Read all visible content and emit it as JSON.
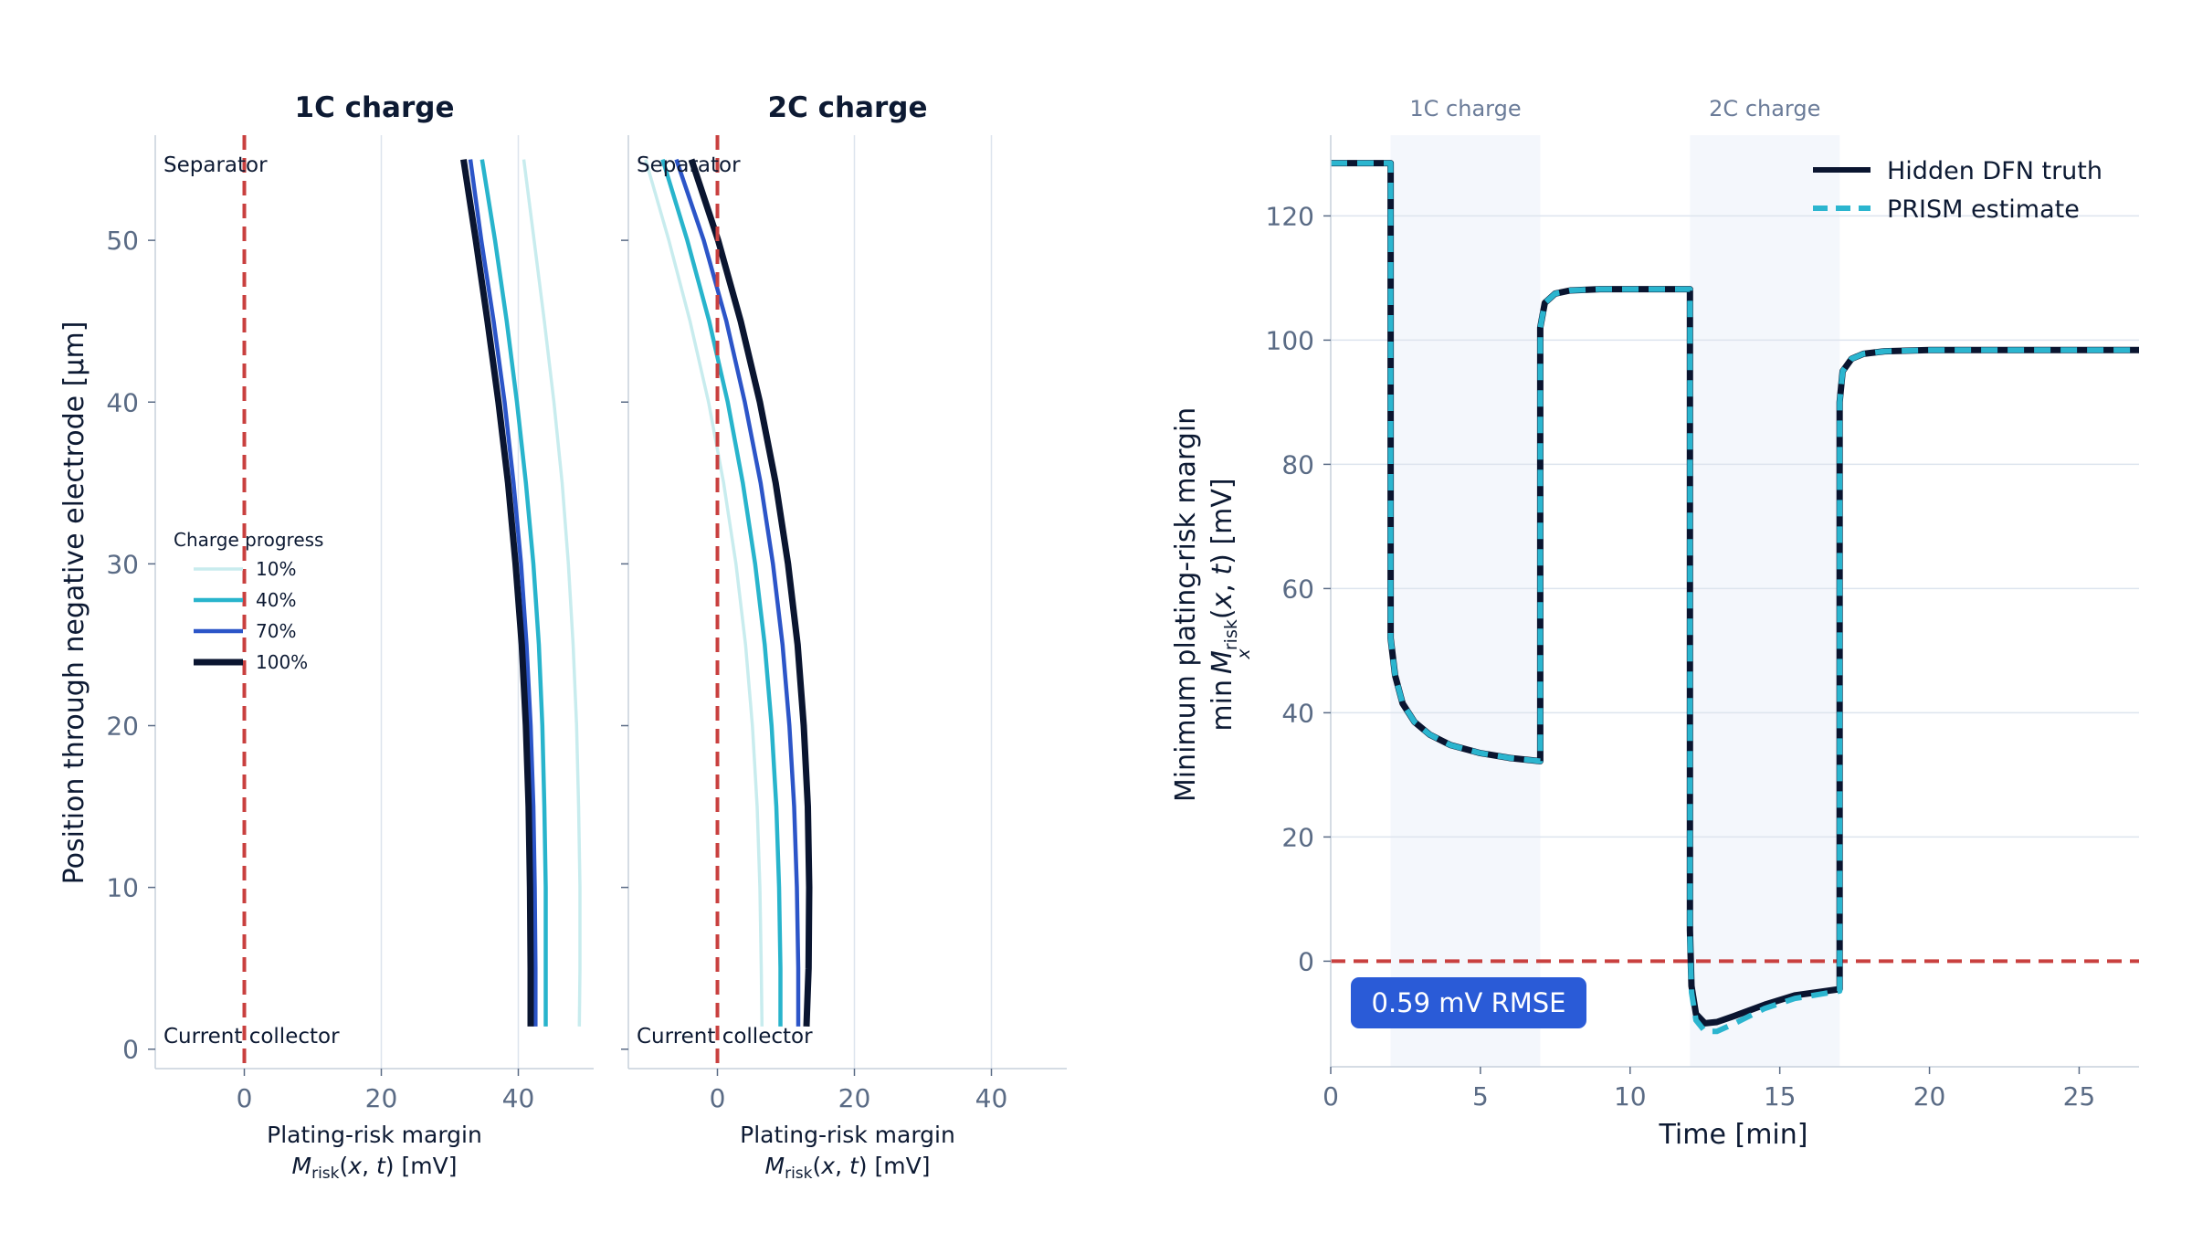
{
  "chart_data": [
    {
      "type": "line",
      "title": "1C charge",
      "xlabel": "Plating-risk margin",
      "xlabel_math": "M_risk(x, t) [mV]",
      "ylabel": "Position through negative electrode [μm]",
      "xlim": [
        -13,
        51
      ],
      "ylim": [
        -1.2,
        56.5
      ],
      "xticks": [
        0,
        20,
        40
      ],
      "yticks": [
        0,
        10,
        20,
        30,
        40,
        50
      ],
      "grid": "vertical",
      "threshold": 0,
      "annotations": {
        "top": "Separator",
        "bottom": "Current collector"
      },
      "legend": {
        "title": "Charge progress",
        "position": "center-left"
      },
      "y": [
        1.4,
        5,
        10,
        15,
        20,
        25,
        30,
        35,
        40,
        45,
        50,
        55
      ],
      "series": [
        {
          "name": "10%",
          "color": "#c8ecee",
          "x": [
            48.9,
            49.0,
            49.0,
            48.8,
            48.5,
            48.0,
            47.3,
            46.4,
            45.2,
            43.8,
            42.3,
            40.8
          ]
        },
        {
          "name": "40%",
          "color": "#28b4cc",
          "x": [
            44.0,
            44.0,
            44.0,
            43.8,
            43.5,
            43.0,
            42.2,
            41.1,
            39.8,
            38.3,
            36.6,
            34.7
          ]
        },
        {
          "name": "70%",
          "color": "#2c55c8",
          "x": [
            42.5,
            42.5,
            42.4,
            42.2,
            41.8,
            41.2,
            40.4,
            39.3,
            38.0,
            36.4,
            34.6,
            33.0
          ]
        },
        {
          "name": "100%",
          "color": "#0a1530",
          "x": [
            41.8,
            41.8,
            41.7,
            41.5,
            41.1,
            40.5,
            39.6,
            38.5,
            37.1,
            35.5,
            33.8,
            32.0
          ]
        }
      ]
    },
    {
      "type": "line",
      "title": "2C charge",
      "xlabel": "Plating-risk margin",
      "xlabel_math": "M_risk(x, t) [mV]",
      "xlim": [
        -13,
        51
      ],
      "ylim": [
        -1.2,
        56.5
      ],
      "xticks": [
        0,
        20,
        40
      ],
      "grid": "vertical",
      "threshold": 0,
      "annotations": {
        "top": "Separator",
        "bottom": "Current collector"
      },
      "y": [
        1.4,
        5,
        10,
        15,
        20,
        25,
        30,
        35,
        40,
        45,
        50,
        55
      ],
      "series": [
        {
          "name": "10%",
          "color": "#c8ecee",
          "x": [
            6.5,
            6.4,
            6.2,
            5.8,
            5.1,
            4.1,
            2.7,
            0.9,
            -1.3,
            -4.0,
            -7.1,
            -10.5
          ]
        },
        {
          "name": "40%",
          "color": "#28b4cc",
          "x": [
            9.2,
            9.2,
            9.0,
            8.6,
            7.9,
            6.9,
            5.5,
            3.7,
            1.5,
            -1.2,
            -4.4,
            -8.0
          ]
        },
        {
          "name": "70%",
          "color": "#2c55c8",
          "x": [
            11.8,
            11.8,
            11.6,
            11.2,
            10.5,
            9.5,
            8.1,
            6.3,
            4.0,
            1.3,
            -2.0,
            -6.0
          ]
        },
        {
          "name": "100%",
          "color": "#0a1530",
          "x": [
            13.0,
            13.3,
            13.4,
            13.2,
            12.6,
            11.7,
            10.3,
            8.5,
            6.2,
            3.4,
            0.1,
            -3.8
          ]
        }
      ]
    },
    {
      "type": "line",
      "xlabel": "Time [min]",
      "ylabel": "Minimum plating-risk margin",
      "ylabel_math": "min_x M_risk(x, t) [mV]",
      "xlim": [
        0,
        27
      ],
      "ylim": [
        -17,
        133
      ],
      "xticks": [
        0,
        5,
        10,
        15,
        20,
        25
      ],
      "yticks": [
        0,
        20,
        40,
        60,
        80,
        100,
        120
      ],
      "grid": "horizontal",
      "threshold": 0,
      "legend": {
        "position": "top-right"
      },
      "shaded_regions": [
        {
          "label": "1C charge",
          "x": [
            2,
            7
          ]
        },
        {
          "label": "2C charge",
          "x": [
            12,
            17
          ]
        }
      ],
      "badge": "0.59 mV RMSE",
      "series": [
        {
          "name": "Hidden DFN truth",
          "color": "#0a1530",
          "x": [
            0,
            2,
            2,
            2.15,
            2.4,
            2.8,
            3.3,
            4,
            5,
            6,
            7,
            7,
            7.15,
            7.5,
            8,
            9,
            12,
            12,
            12.05,
            12.2,
            12.5,
            12.9,
            13.5,
            14.5,
            15.5,
            17,
            17,
            17.1,
            17.4,
            17.8,
            18.5,
            20,
            27
          ],
          "y": [
            128.5,
            128.5,
            52,
            46,
            41.5,
            38.5,
            36.5,
            34.8,
            33.5,
            32.7,
            32.2,
            102,
            106,
            107.5,
            108,
            108.2,
            108.2,
            5,
            -4,
            -8.5,
            -10,
            -9.8,
            -8.8,
            -7,
            -5.5,
            -4.5,
            90,
            95,
            97,
            97.8,
            98.2,
            98.4,
            98.4
          ]
        },
        {
          "name": "PRISM estimate",
          "color": "#2bb5cf",
          "x": [
            0,
            2,
            2,
            2.15,
            2.4,
            2.8,
            3.3,
            4,
            5,
            6,
            7,
            7,
            7.15,
            7.5,
            8,
            9,
            12,
            12,
            12.05,
            12.2,
            12.5,
            12.9,
            13.5,
            14.5,
            15.5,
            17,
            17,
            17.1,
            17.4,
            17.8,
            18.5,
            20,
            27
          ],
          "y": [
            128.5,
            128.5,
            52,
            46,
            41.5,
            38.5,
            36.5,
            34.8,
            33.5,
            32.7,
            32.2,
            102,
            106,
            107.5,
            108,
            108.2,
            108.2,
            4,
            -5,
            -9.5,
            -11.3,
            -11.3,
            -10,
            -7.6,
            -6,
            -4.8,
            90,
            95,
            97,
            97.8,
            98.2,
            98.4,
            98.4
          ]
        }
      ]
    }
  ]
}
